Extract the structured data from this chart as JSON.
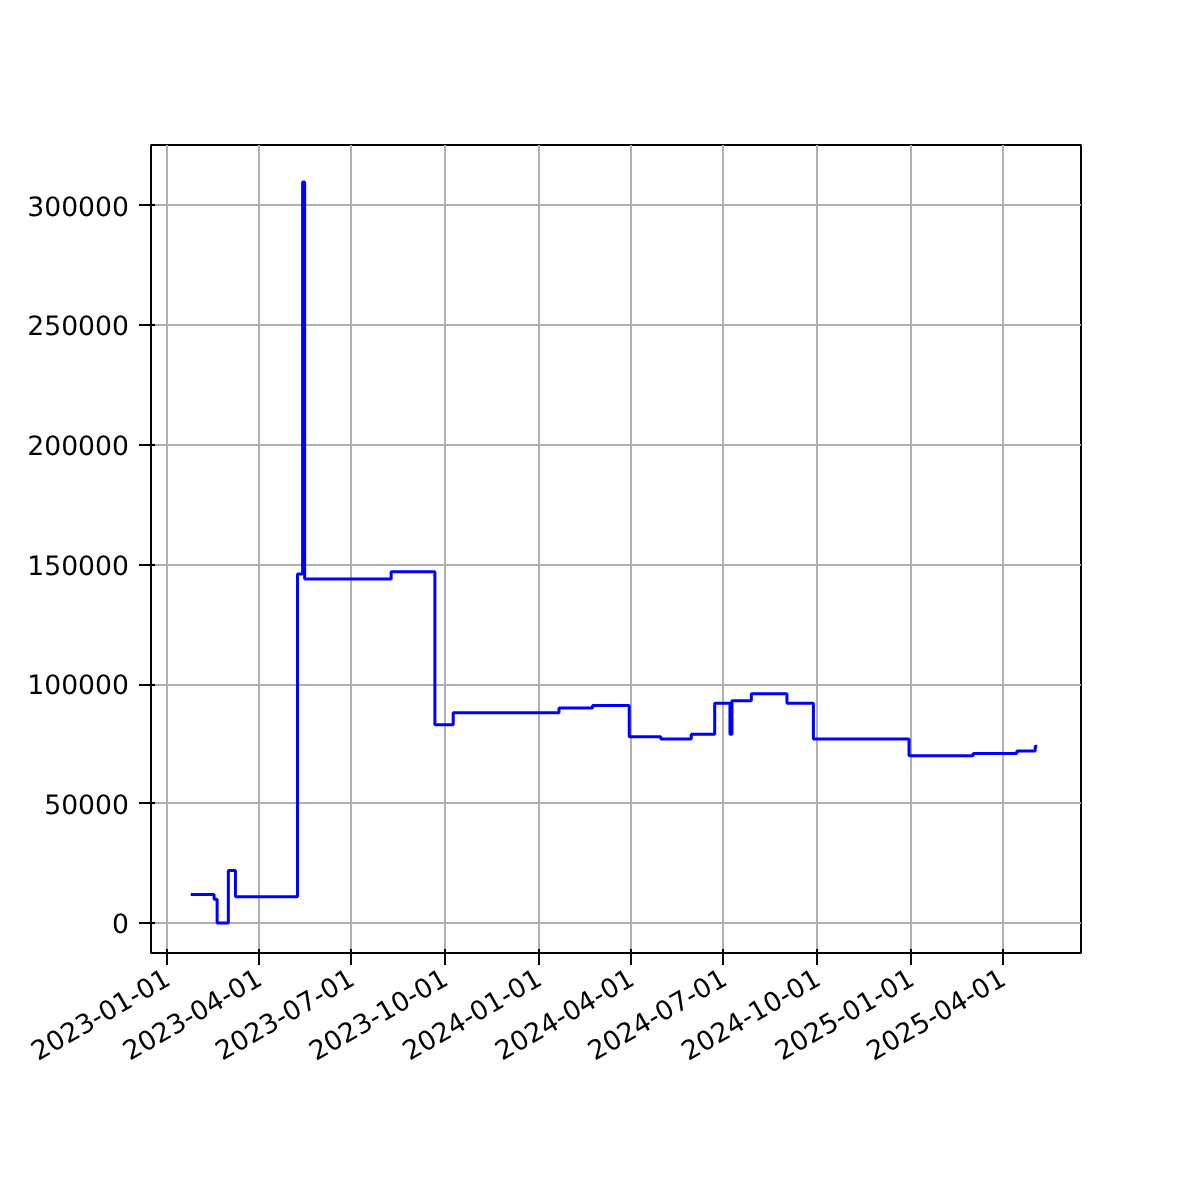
{
  "chart_data": {
    "type": "step",
    "x": [
      "2023-01-24",
      "2023-02-16",
      "2023-02-19",
      "2023-03-02",
      "2023-03-09",
      "2023-05-09",
      "2023-05-14",
      "2023-05-16",
      "2023-08-09",
      "2023-09-21",
      "2023-10-09",
      "2024-01-21",
      "2024-02-23",
      "2024-03-30",
      "2024-04-30",
      "2024-05-30",
      "2024-06-22",
      "2024-07-07",
      "2024-07-09",
      "2024-07-28",
      "2024-09-01",
      "2024-09-27",
      "2024-12-30",
      "2025-03-03",
      "2025-04-15",
      "2025-05-03",
      "2025-05-05"
    ],
    "series": [
      {
        "color": "#0000ff",
        "values": [
          12000,
          10000,
          0,
          22000,
          11000,
          146000,
          310000,
          144000,
          147000,
          83000,
          88000,
          90000,
          91000,
          78000,
          77000,
          79000,
          92000,
          79000,
          93000,
          96000,
          92000,
          77000,
          70000,
          71000,
          72000,
          74000,
          74000
        ]
      }
    ],
    "xlim": [
      "2022-12-16",
      "2025-06-17"
    ],
    "ylim": [
      -12500,
      325500
    ],
    "xticks": [
      "2023-01-01",
      "2023-04-01",
      "2023-07-01",
      "2023-10-01",
      "2024-01-01",
      "2024-04-01",
      "2024-07-01",
      "2024-10-01",
      "2025-01-01",
      "2025-04-01"
    ],
    "yticks": [
      0,
      50000,
      100000,
      150000,
      200000,
      250000,
      300000
    ],
    "grid": true
  }
}
